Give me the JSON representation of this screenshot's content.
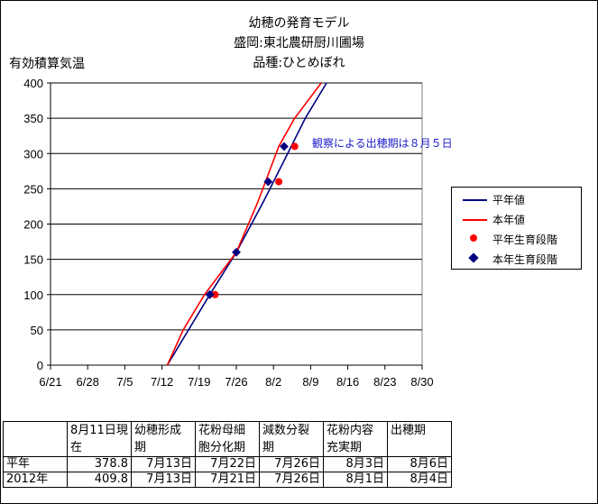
{
  "title_lines": [
    "幼穂の発育モデル",
    "盛岡:東北農研厨川圃場",
    "品種:ひとめぼれ"
  ],
  "chart_data": {
    "type": "line",
    "ylabel": "有効積算気温",
    "ylim": [
      0,
      400
    ],
    "yticks": [
      0,
      50,
      100,
      150,
      200,
      250,
      300,
      350,
      400
    ],
    "xticks": [
      "6/21",
      "6/28",
      "7/5",
      "7/12",
      "7/19",
      "7/26",
      "8/2",
      "8/9",
      "8/16",
      "8/23",
      "8/30"
    ],
    "xlim": [
      "6/21",
      "8/30"
    ],
    "series": [
      {
        "name": "平年値",
        "kind": "line",
        "color": "#000080",
        "x": [
          "7/13",
          "7/17",
          "7/21",
          "7/26",
          "7/31",
          "8/4",
          "8/8",
          "8/12"
        ],
        "y": [
          0,
          50,
          100,
          160,
          230,
          290,
          350,
          400
        ]
      },
      {
        "name": "本年値",
        "kind": "line",
        "color": "#ff0000",
        "x": [
          "7/13",
          "7/16",
          "7/20",
          "7/26",
          "7/30",
          "8/3",
          "8/6",
          "8/8",
          "8/11"
        ],
        "y": [
          0,
          50,
          100,
          160,
          230,
          310,
          350,
          370,
          400
        ]
      },
      {
        "name": "平年生育段階",
        "kind": "scatter",
        "color": "#ff0000",
        "x": [
          "7/22",
          "8/3",
          "8/6"
        ],
        "y": [
          100,
          260,
          310
        ]
      },
      {
        "name": "本年生育段階",
        "kind": "scatter",
        "color": "#000080",
        "x": [
          "7/21",
          "7/26",
          "8/1",
          "8/4"
        ],
        "y": [
          100,
          160,
          260,
          310
        ]
      }
    ],
    "annotation": "観察による出穂期は８月５日",
    "grid": "horizontal",
    "legend_position": "right"
  },
  "table": {
    "headers": [
      "",
      "8月11日現在",
      "幼穂形成期",
      "花粉母細胞分化期",
      "減数分裂期",
      "花粉内容充実期",
      "出穂期"
    ],
    "rows": [
      [
        "平年",
        "378.8",
        "7月13日",
        "7月22日",
        "7月26日",
        "8月3日",
        "8月6日"
      ],
      [
        "2012年",
        "409.8",
        "7月13日",
        "7月21日",
        "7月26日",
        "8月1日",
        "8月4日"
      ]
    ]
  }
}
